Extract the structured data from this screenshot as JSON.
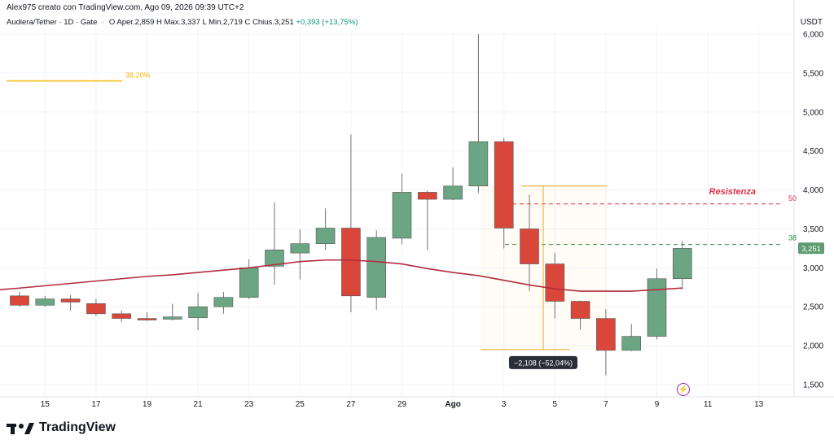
{
  "header": {
    "watermark": "Alex975 creato con TradingView.com, Ago 09, 2026 09:39 UTC+2",
    "symbol": "Audiera/Tether · 1D · Gate",
    "open_label": "O",
    "open_value": "Aper.2,859",
    "high_label": "H",
    "high_value": "Max.3,337",
    "low_label": "L",
    "low_value": "Min.2,719",
    "close_label": "C",
    "close_value": "Chius.3,251",
    "change": "+0,393 (+13,75%)"
  },
  "axis_unit": "USDT",
  "brand": "TradingView",
  "colors": {
    "up": "#6ba583",
    "down": "#d9473a",
    "ma": "#b22c3e",
    "fib": "#f5b800",
    "resistance": "#e0304a",
    "support": "#2e8b3e",
    "price_tag": "#5d9c72",
    "measure": "#f5a623"
  },
  "chart_data": {
    "type": "candlestick",
    "y_axis": {
      "ticks": [
        1.5,
        2.0,
        2.5,
        3.0,
        3.5,
        4.0,
        4.5,
        5.0,
        5.5,
        6.0
      ],
      "tick_labels": [
        "1,500",
        "2,000",
        "2,500",
        "3,000",
        "3,500",
        "4,000",
        "4,500",
        "5,000",
        "5,500",
        "6,000"
      ],
      "range": [
        1.5,
        6.0
      ]
    },
    "x_axis": {
      "ticks": [
        "15",
        "17",
        "19",
        "21",
        "23",
        "25",
        "27",
        "29",
        "Ago",
        "3",
        "5",
        "7",
        "9",
        "11",
        "13"
      ]
    },
    "candles": [
      {
        "open": 2.64,
        "high": 2.69,
        "low": 2.5,
        "close": 2.52
      },
      {
        "open": 2.52,
        "high": 2.64,
        "low": 2.5,
        "close": 2.6
      },
      {
        "open": 2.6,
        "high": 2.65,
        "low": 2.45,
        "close": 2.56
      },
      {
        "open": 2.54,
        "high": 2.6,
        "low": 2.38,
        "close": 2.41
      },
      {
        "open": 2.41,
        "high": 2.45,
        "low": 2.3,
        "close": 2.35
      },
      {
        "open": 2.35,
        "high": 2.43,
        "low": 2.32,
        "close": 2.34
      },
      {
        "open": 2.34,
        "high": 2.54,
        "low": 2.32,
        "close": 2.37
      },
      {
        "open": 2.36,
        "high": 2.68,
        "low": 2.2,
        "close": 2.5
      },
      {
        "open": 2.5,
        "high": 2.69,
        "low": 2.41,
        "close": 2.62
      },
      {
        "open": 2.62,
        "high": 3.11,
        "low": 2.6,
        "close": 3.0
      },
      {
        "open": 3.02,
        "high": 3.84,
        "low": 2.78,
        "close": 3.23
      },
      {
        "open": 3.19,
        "high": 3.49,
        "low": 2.85,
        "close": 3.31
      },
      {
        "open": 3.31,
        "high": 3.76,
        "low": 3.23,
        "close": 3.51
      },
      {
        "open": 3.51,
        "high": 4.71,
        "low": 2.43,
        "close": 2.64
      },
      {
        "open": 2.62,
        "high": 3.48,
        "low": 2.46,
        "close": 3.39
      },
      {
        "open": 3.38,
        "high": 4.21,
        "low": 3.3,
        "close": 3.97
      },
      {
        "open": 3.97,
        "high": 3.99,
        "low": 3.23,
        "close": 3.88
      },
      {
        "open": 3.88,
        "high": 4.29,
        "low": 3.87,
        "close": 4.05
      },
      {
        "open": 4.05,
        "high": 6.0,
        "low": 3.96,
        "close": 4.62
      },
      {
        "open": 4.62,
        "high": 4.67,
        "low": 3.25,
        "close": 3.51
      },
      {
        "open": 3.5,
        "high": 3.94,
        "low": 2.7,
        "close": 3.05
      },
      {
        "open": 3.05,
        "high": 3.19,
        "low": 2.35,
        "close": 2.57
      },
      {
        "open": 2.57,
        "high": 2.58,
        "low": 2.21,
        "close": 2.35
      },
      {
        "open": 2.35,
        "high": 2.47,
        "low": 1.62,
        "close": 1.94
      },
      {
        "open": 1.94,
        "high": 2.28,
        "low": 1.93,
        "close": 2.12
      },
      {
        "open": 2.12,
        "high": 2.99,
        "low": 2.08,
        "close": 2.86
      },
      {
        "open": 2.86,
        "high": 3.34,
        "low": 2.72,
        "close": 3.25
      }
    ],
    "moving_average": [
      2.74,
      2.77,
      2.8,
      2.83,
      2.86,
      2.89,
      2.91,
      2.94,
      2.97,
      3.0,
      3.04,
      3.08,
      3.1,
      3.1,
      3.08,
      3.05,
      2.99,
      2.94,
      2.9,
      2.84,
      2.78,
      2.73,
      2.7,
      2.7,
      2.7,
      2.72,
      2.74
    ],
    "annotations": {
      "fib_label": "38,20%",
      "fib_level": 5.4,
      "resistance_label": "Resistenza",
      "resistance_level": 3.82,
      "resistance_tag": "50",
      "support_level": 3.3,
      "support_tag": "38",
      "price_tag": "3,251",
      "measure_label": "−2,108 (−52,04%)",
      "measure_from": 4.05,
      "measure_to": 1.95
    }
  }
}
